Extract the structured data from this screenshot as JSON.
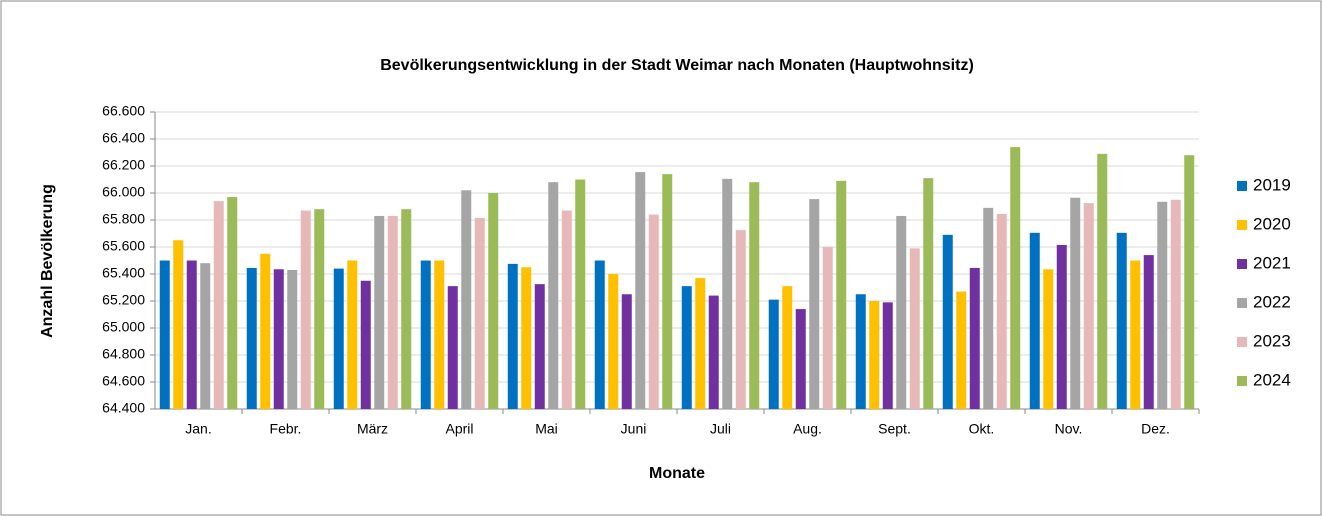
{
  "chart_data": {
    "type": "bar",
    "title": "Bevölkerungsentwicklung in der Stadt Weimar nach Monaten (Hauptwohnsitz)",
    "x_label": "Monate",
    "y_label": "Anzahl Bevölkerung",
    "categories": [
      "Jan.",
      "Febr.",
      "März",
      "April",
      "Mai",
      "Juni",
      "Juli",
      "Aug.",
      "Sept.",
      "Okt.",
      "Nov.",
      "Dez."
    ],
    "series": [
      {
        "name": "2019",
        "color": "#0070c0",
        "values": [
          65500,
          65445,
          65440,
          65500,
          65475,
          65500,
          65310,
          65210,
          65250,
          65690,
          65705,
          65705
        ]
      },
      {
        "name": "2020",
        "color": "#ffc000",
        "values": [
          65650,
          65550,
          65500,
          65500,
          65450,
          65400,
          65370,
          65310,
          65200,
          65270,
          65435,
          65500
        ]
      },
      {
        "name": "2021",
        "color": "#7030a0",
        "values": [
          65500,
          65435,
          65350,
          65310,
          65325,
          65250,
          65240,
          65140,
          65190,
          65445,
          65615,
          65540
        ]
      },
      {
        "name": "2022",
        "color": "#a5a5a5",
        "values": [
          65480,
          65430,
          65830,
          66020,
          66080,
          66155,
          66105,
          65955,
          65830,
          65890,
          65965,
          65935
        ]
      },
      {
        "name": "2023",
        "color": "#e6b8b7",
        "values": [
          65940,
          65870,
          65830,
          65815,
          65870,
          65840,
          65725,
          65600,
          65590,
          65845,
          65925,
          65950
        ]
      },
      {
        "name": "2024",
        "color": "#9bbb59",
        "values": [
          65970,
          65880,
          65880,
          66000,
          66100,
          66140,
          66080,
          66090,
          66110,
          66340,
          66290,
          66280
        ]
      }
    ],
    "ylim": [
      64400,
      66600
    ],
    "yticks": [
      {
        "value": 64400,
        "label": "64.400"
      },
      {
        "value": 64600,
        "label": "64.600"
      },
      {
        "value": 64800,
        "label": "64.800"
      },
      {
        "value": 65000,
        "label": "65.000"
      },
      {
        "value": 65200,
        "label": "65.200"
      },
      {
        "value": 65400,
        "label": "65.400"
      },
      {
        "value": 65600,
        "label": "65.600"
      },
      {
        "value": 65800,
        "label": "65.800"
      },
      {
        "value": 66000,
        "label": "66.000"
      },
      {
        "value": 66200,
        "label": "66.200"
      },
      {
        "value": 66400,
        "label": "66.400"
      },
      {
        "value": 66600,
        "label": "66.600"
      }
    ],
    "grid": true,
    "legend_position": "right"
  }
}
